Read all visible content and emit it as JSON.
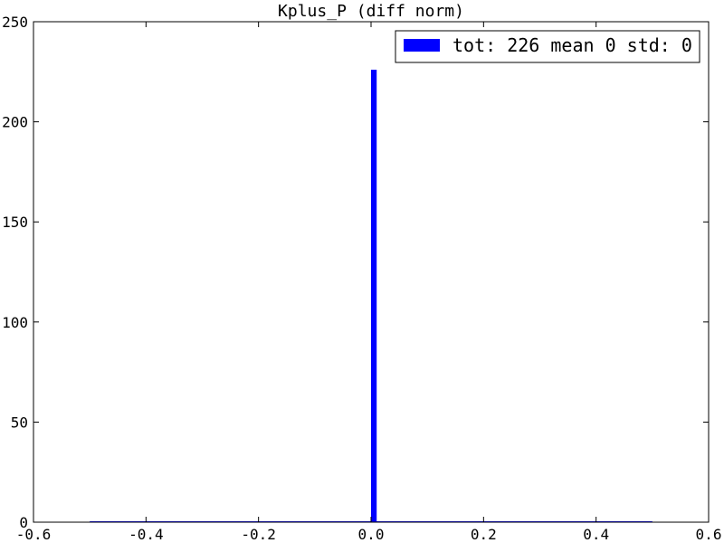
{
  "chart_data": {
    "type": "bar",
    "title": "Kplus_P (diff norm)",
    "xlabel": "",
    "ylabel": "",
    "xlim": [
      -0.6,
      0.6
    ],
    "ylim": [
      0,
      250
    ],
    "x_ticks": [
      -0.6,
      -0.4,
      -0.2,
      0.0,
      0.2,
      0.4,
      0.6
    ],
    "x_tick_labels": [
      "-0.6",
      "-0.4",
      "-0.2",
      "0.0",
      "0.2",
      "0.4",
      "0.6"
    ],
    "y_ticks": [
      0,
      50,
      100,
      150,
      200,
      250
    ],
    "y_tick_labels": [
      "0",
      "50",
      "100",
      "150",
      "200",
      "250"
    ],
    "grid": false,
    "legend_position": "top-right",
    "bar_color": "#0000ff",
    "series": [
      {
        "name": "tot: 226 mean 0 std: 0",
        "bins": {
          "range": [
            -0.5,
            0.5
          ],
          "count": 100
        },
        "bars": [
          {
            "x_start": 0.0,
            "x_end": 0.01,
            "value": 226
          }
        ]
      }
    ]
  }
}
